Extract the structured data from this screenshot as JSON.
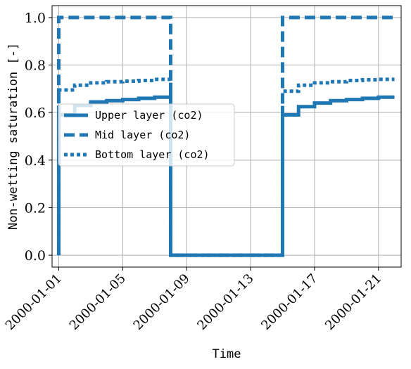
{
  "chart_data": {
    "type": "line",
    "xlabel": "Time",
    "ylabel": "Non-wetting saturation [-]",
    "xlim": [
      "2000-01-00T14:00",
      "2000-01-22T10:00"
    ],
    "ylim": [
      -0.05,
      1.05
    ],
    "x_ticks": [
      "2000-01-01",
      "2000-01-05",
      "2000-01-09",
      "2000-01-13",
      "2000-01-17",
      "2000-01-21"
    ],
    "y_ticks": [
      "0.0",
      "0.2",
      "0.4",
      "0.6",
      "0.8",
      "1.0"
    ],
    "grid": true,
    "legend_position": "center-left",
    "color": "#1f77b4",
    "series": [
      {
        "name": "Upper layer (co2)",
        "style": "solid",
        "x": [
          "2000-01-01T00:00",
          "2000-01-01T00:00",
          "2000-01-02T00:00",
          "2000-01-02T00:00",
          "2000-01-03T00:00",
          "2000-01-03T00:00",
          "2000-01-04T00:00",
          "2000-01-04T00:00",
          "2000-01-05T00:00",
          "2000-01-05T00:00",
          "2000-01-06T00:00",
          "2000-01-06T00:00",
          "2000-01-07T00:00",
          "2000-01-07T00:00",
          "2000-01-08T00:00",
          "2000-01-08T00:00",
          "2000-01-15T00:00",
          "2000-01-15T00:00",
          "2000-01-16T00:00",
          "2000-01-16T00:00",
          "2000-01-17T00:00",
          "2000-01-17T00:00",
          "2000-01-18T00:00",
          "2000-01-18T00:00",
          "2000-01-19T00:00",
          "2000-01-19T00:00",
          "2000-01-20T00:00",
          "2000-01-20T00:00",
          "2000-01-21T00:00",
          "2000-01-21T00:00",
          "2000-01-22T00:00"
        ],
        "y": [
          0.0,
          0.59,
          0.59,
          0.63,
          0.63,
          0.645,
          0.645,
          0.65,
          0.65,
          0.655,
          0.655,
          0.66,
          0.66,
          0.665,
          0.665,
          0.0,
          0.0,
          0.59,
          0.59,
          0.625,
          0.625,
          0.64,
          0.64,
          0.65,
          0.65,
          0.655,
          0.655,
          0.66,
          0.66,
          0.665,
          0.665
        ]
      },
      {
        "name": "Mid layer (co2)",
        "style": "dashed",
        "x": [
          "2000-01-01T00:00",
          "2000-01-01T00:00",
          "2000-01-08T00:00",
          "2000-01-08T00:00",
          "2000-01-15T00:00",
          "2000-01-15T00:00",
          "2000-01-22T00:00"
        ],
        "y": [
          0.0,
          1.0,
          1.0,
          0.0,
          0.0,
          1.0,
          1.0
        ]
      },
      {
        "name": "Bottom layer (co2)",
        "style": "dotted",
        "x": [
          "2000-01-01T00:00",
          "2000-01-01T00:00",
          "2000-01-02T00:00",
          "2000-01-02T00:00",
          "2000-01-03T00:00",
          "2000-01-03T00:00",
          "2000-01-04T00:00",
          "2000-01-04T00:00",
          "2000-01-05T00:00",
          "2000-01-05T00:00",
          "2000-01-06T00:00",
          "2000-01-06T00:00",
          "2000-01-07T00:00",
          "2000-01-07T00:00",
          "2000-01-08T00:00",
          "2000-01-08T00:00",
          "2000-01-15T00:00",
          "2000-01-15T00:00",
          "2000-01-16T00:00",
          "2000-01-16T00:00",
          "2000-01-17T00:00",
          "2000-01-17T00:00",
          "2000-01-18T00:00",
          "2000-01-18T00:00",
          "2000-01-19T00:00",
          "2000-01-19T00:00",
          "2000-01-20T00:00",
          "2000-01-20T00:00",
          "2000-01-21T00:00",
          "2000-01-21T00:00",
          "2000-01-22T00:00"
        ],
        "y": [
          0.0,
          0.695,
          0.695,
          0.715,
          0.715,
          0.725,
          0.725,
          0.73,
          0.73,
          0.732,
          0.732,
          0.735,
          0.735,
          0.74,
          0.74,
          0.0,
          0.0,
          0.69,
          0.69,
          0.715,
          0.715,
          0.725,
          0.725,
          0.73,
          0.73,
          0.735,
          0.735,
          0.738,
          0.738,
          0.74,
          0.74
        ]
      }
    ]
  }
}
